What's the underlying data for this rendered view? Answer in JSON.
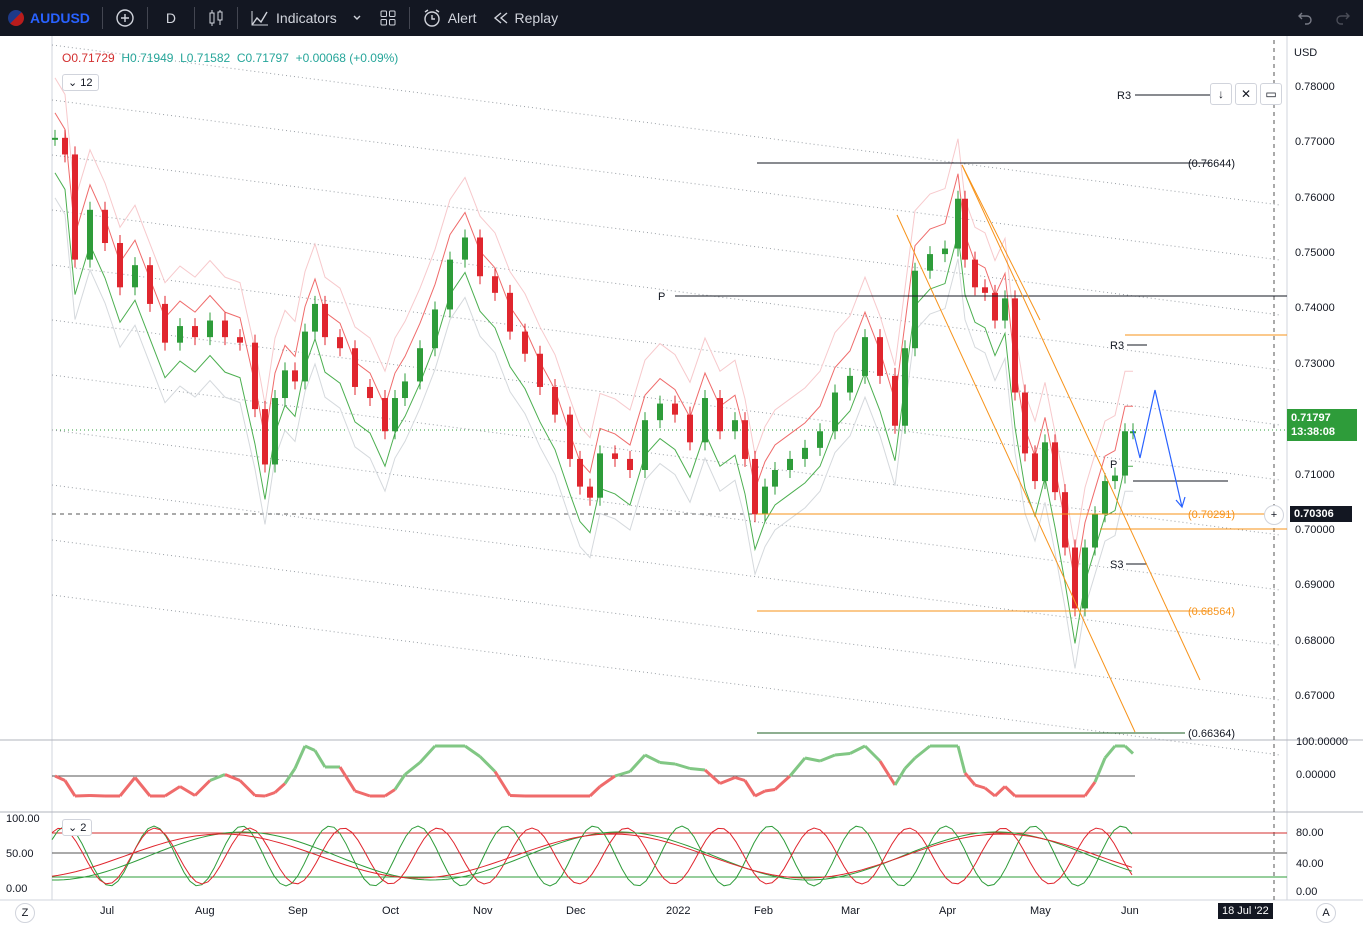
{
  "toolbar": {
    "symbol": "AUDUSD",
    "interval": "D",
    "indicators_label": "Indicators",
    "alert_label": "Alert",
    "replay_label": "Replay"
  },
  "legend": {
    "open": "O0.71729",
    "high": "H0.71949",
    "low": "L0.71582",
    "close": "C0.71797",
    "change": "+0.00068 (+0.09%)",
    "indicator_badge": "12",
    "oscillator_badge": "2"
  },
  "price_axis": {
    "currency": "USD",
    "labels": [
      "0.78000",
      "0.77000",
      "0.76000",
      "0.75000",
      "0.74000",
      "0.73000",
      "0.72000",
      "0.71000",
      "0.70000",
      "0.69000",
      "0.68000",
      "0.67000"
    ],
    "current_price": "0.71797",
    "countdown": "13:38:08",
    "crosshair_price": "0.70306"
  },
  "sub_axis_1": {
    "labels": [
      "100.00000",
      "0.00000"
    ]
  },
  "sub_axis_2": {
    "left_labels": [
      "100.00",
      "50.00",
      "0.00"
    ],
    "right_labels": [
      "80.00",
      "40.00",
      "0.00"
    ]
  },
  "time_axis": {
    "labels": [
      "Jul",
      "Aug",
      "Sep",
      "Oct",
      "Nov",
      "Dec",
      "2022",
      "Feb",
      "Mar",
      "Apr",
      "May",
      "Jun"
    ],
    "crosshair_date": "18 Jul '22",
    "left_button": "Z",
    "right_button": "A"
  },
  "levels": {
    "fib_top": "(0.76644)",
    "fib_mid": "(0.70291)",
    "fib_low": "(0.68564)",
    "fib_bottom": "(0.66364)",
    "r3_upper": "R3",
    "r3_lower": "R3",
    "pivot": "P",
    "pivot_small": "P",
    "s3": "S3"
  },
  "colors": {
    "up": "#26a69a",
    "candle_up": "#2e9c3a",
    "candle_down": "#e0262e",
    "accent": "#2962ff",
    "fib": "#f7931a",
    "toolbar_bg": "#131722"
  },
  "icons": [
    "flag-icon",
    "add-icon",
    "bar-style-icon",
    "indicators-icon",
    "chevron-down-icon",
    "layout-icon",
    "alert-icon",
    "replay-icon",
    "undo-icon",
    "redo-icon",
    "down-arrow-icon",
    "close-icon",
    "maximize-icon",
    "crosshair-plus-icon"
  ]
}
